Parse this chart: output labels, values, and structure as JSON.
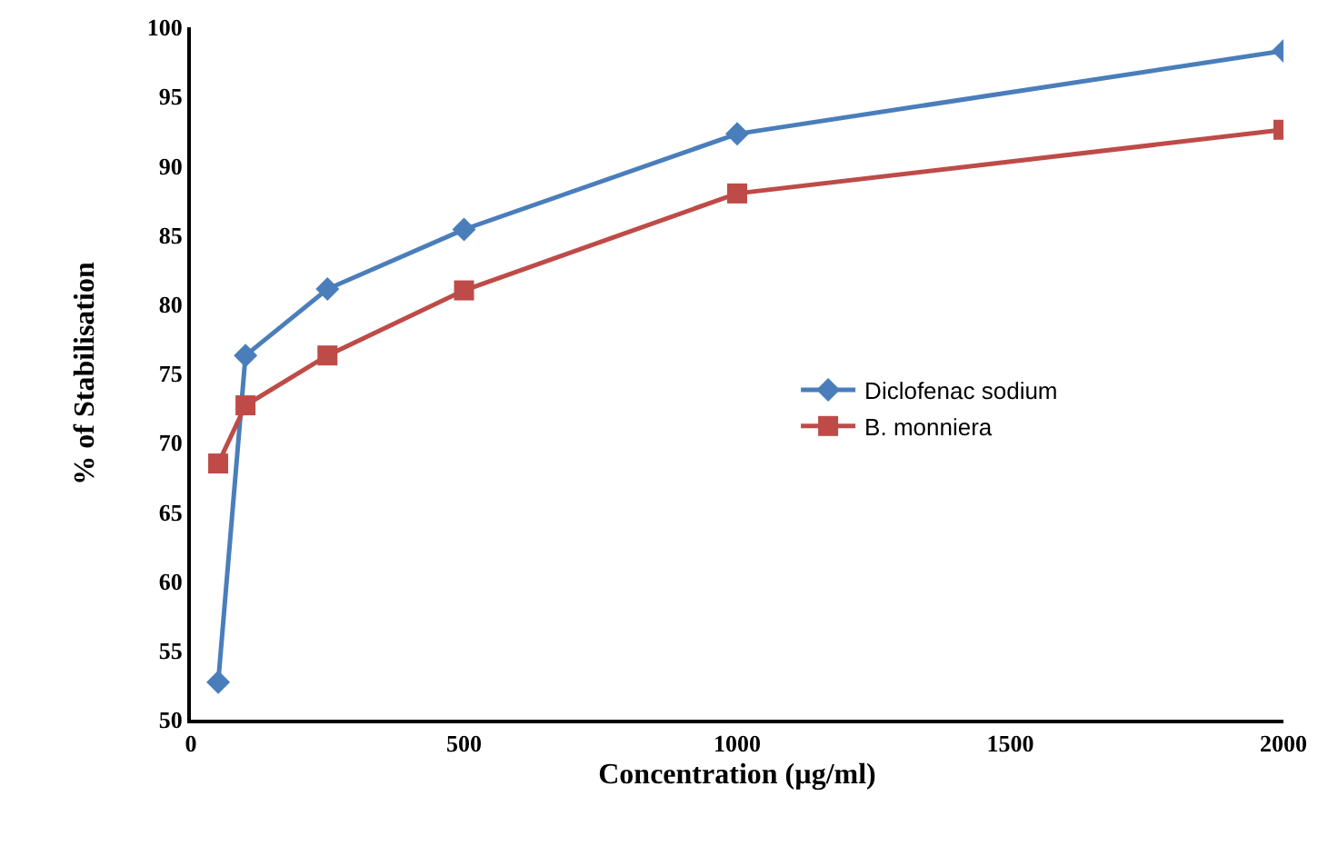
{
  "chart_data": {
    "type": "line",
    "xlabel": "Concentration (µg/ml)",
    "ylabel": "% of Stabilisation",
    "x": [
      50,
      100,
      250,
      500,
      1000,
      2000
    ],
    "series": [
      {
        "name": "Diclofenac sodium",
        "color": "#4a7ebb",
        "marker": "diamond",
        "values": [
          52.7,
          76.3,
          81.1,
          85.4,
          92.3,
          98.3
        ]
      },
      {
        "name": "B. monniera",
        "color": "#be4b48",
        "marker": "square",
        "values": [
          68.5,
          72.7,
          76.3,
          81.0,
          88.0,
          92.6
        ]
      }
    ],
    "xlim": [
      0,
      2000
    ],
    "xticks": [
      0,
      500,
      1000,
      1500,
      2000
    ],
    "ylim": [
      50,
      100
    ],
    "yticks": [
      50,
      55,
      60,
      65,
      70,
      75,
      80,
      85,
      90,
      95,
      100
    ],
    "grid": false,
    "legend": "right",
    "line_style": "solid"
  }
}
